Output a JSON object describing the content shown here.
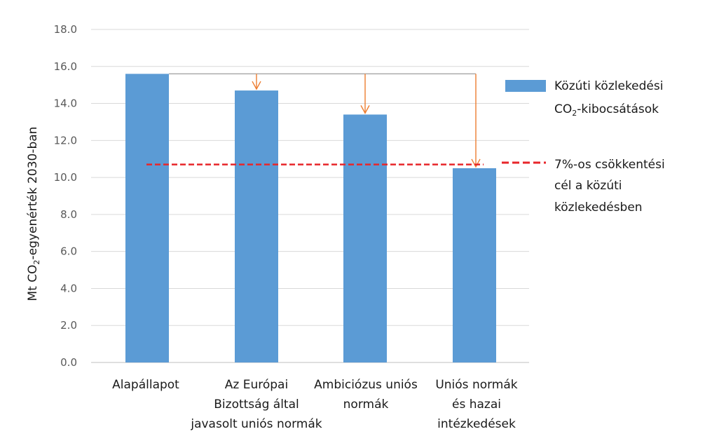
{
  "chart_data": {
    "type": "bar",
    "categories": [
      [
        "Alapállapot"
      ],
      [
        "Az Európai",
        "Bizottság által",
        "javasolt uniós normák"
      ],
      [
        "Ambiciózus uniós",
        "normák"
      ],
      [
        "Uniós normák",
        "és hazai",
        "intézkedések"
      ]
    ],
    "series": [
      {
        "name": "Közúti közlekedési CO2-kibocsátások",
        "values": [
          15.6,
          14.7,
          13.4,
          10.5
        ],
        "color": "#5b9bd5"
      }
    ],
    "target": {
      "name": "7%-os csökkentési cél a közúti közlekedésben",
      "value": 10.7,
      "color": "#e8262a"
    },
    "reduction_arrows": {
      "from": 15.6,
      "to_categories": [
        1,
        2,
        3
      ],
      "color": "#ed7d31"
    },
    "yticks": [
      "0.0",
      "2.0",
      "4.0",
      "6.0",
      "8.0",
      "10.0",
      "12.0",
      "14.0",
      "16.0",
      "18.0"
    ],
    "ylim": [
      0,
      18
    ],
    "ylabel": {
      "main": "Mt CO",
      "sub": "2",
      "rest": "-egyenérték 2030-ban"
    },
    "grid": true,
    "legend": {
      "bar_lines": [
        {
          "text": "Közúti közlekedési"
        },
        {
          "main": "CO",
          "sub": "2",
          "rest": "-kibocsátások"
        }
      ],
      "line_lines": [
        "7%-os csökkentési",
        "cél a közúti",
        "közlekedésben"
      ],
      "position": "right"
    }
  }
}
